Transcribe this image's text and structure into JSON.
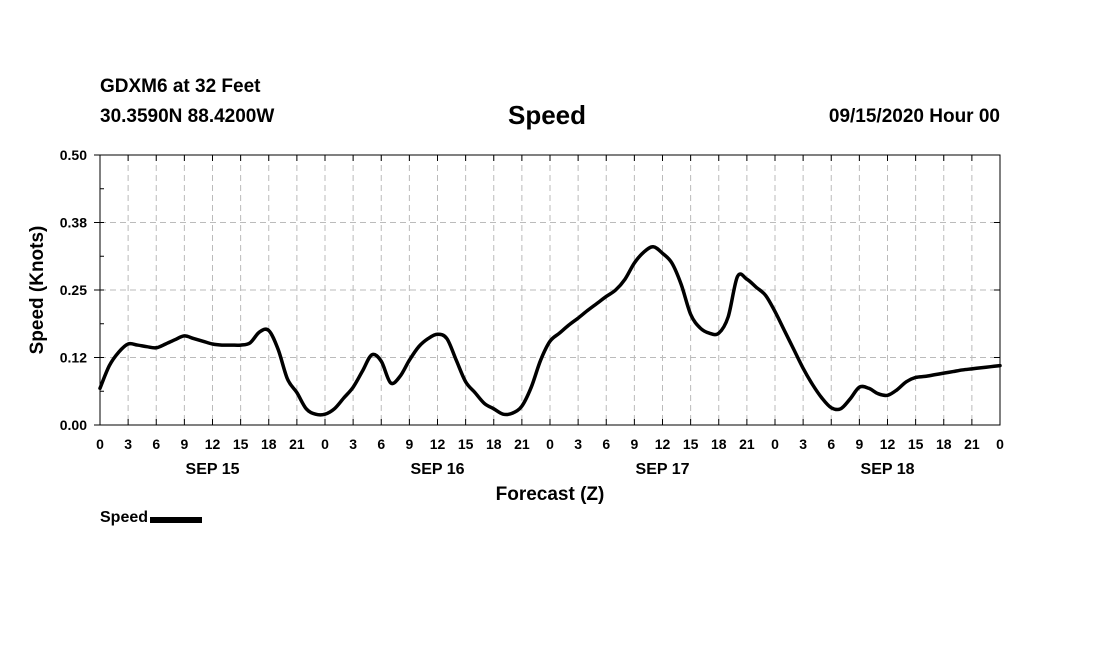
{
  "header": {
    "station": "GDXM6 at 32 Feet",
    "location": "30.3590N 88.4200W",
    "title": "Speed",
    "datestamp": "09/15/2020 Hour 00"
  },
  "chart_data": {
    "type": "line",
    "title": "Speed",
    "xlabel": "Forecast (Z)",
    "ylabel": "Speed (Knots)",
    "xlim": [
      0,
      96
    ],
    "ylim": [
      0,
      0.5
    ],
    "ytick_values": [
      0,
      0.125,
      0.25,
      0.375,
      0.5
    ],
    "ytick_labels": [
      "0.00",
      "0.12",
      "0.25",
      "0.38",
      "0.50"
    ],
    "xtick_labels": [
      "0",
      "3",
      "6",
      "9",
      "12",
      "15",
      "18",
      "21",
      "0",
      "3",
      "6",
      "9",
      "12",
      "15",
      "18",
      "21",
      "0",
      "3",
      "6",
      "9",
      "12",
      "15",
      "18",
      "21",
      "0",
      "3",
      "6",
      "9",
      "12",
      "15",
      "18",
      "21",
      "0"
    ],
    "day_labels": [
      {
        "label": "SEP 15",
        "hour": 12
      },
      {
        "label": "SEP 16",
        "hour": 36
      },
      {
        "label": "SEP 17",
        "hour": 60
      },
      {
        "label": "SEP 18",
        "hour": 84
      }
    ],
    "grid": true,
    "legend": {
      "position": "bottom-left",
      "label": "Speed"
    },
    "series": [
      {
        "name": "Speed",
        "color": "#000000",
        "x": [
          0,
          1,
          2,
          3,
          4,
          5,
          6,
          7,
          8,
          9,
          10,
          11,
          12,
          13,
          14,
          15,
          16,
          17,
          18,
          19,
          20,
          21,
          22,
          23,
          24,
          25,
          26,
          27,
          28,
          29,
          30,
          31,
          32,
          33,
          34,
          35,
          36,
          37,
          38,
          39,
          40,
          41,
          42,
          43,
          44,
          45,
          46,
          47,
          48,
          49,
          50,
          51,
          52,
          53,
          54,
          55,
          56,
          57,
          58,
          59,
          60,
          61,
          62,
          63,
          64,
          65,
          66,
          67,
          68,
          69,
          70,
          71,
          72,
          73,
          74,
          75,
          76,
          77,
          78,
          79,
          80,
          81,
          82,
          83,
          84,
          85,
          86,
          87,
          88,
          89,
          90,
          91,
          92,
          93,
          94,
          95,
          96
        ],
        "values": [
          0.068,
          0.11,
          0.135,
          0.15,
          0.148,
          0.145,
          0.143,
          0.15,
          0.158,
          0.165,
          0.16,
          0.155,
          0.15,
          0.148,
          0.148,
          0.148,
          0.152,
          0.172,
          0.175,
          0.14,
          0.085,
          0.06,
          0.03,
          0.02,
          0.02,
          0.03,
          0.05,
          0.07,
          0.1,
          0.13,
          0.118,
          0.078,
          0.09,
          0.12,
          0.145,
          0.16,
          0.168,
          0.16,
          0.12,
          0.08,
          0.06,
          0.04,
          0.03,
          0.02,
          0.022,
          0.035,
          0.07,
          0.12,
          0.155,
          0.17,
          0.185,
          0.198,
          0.212,
          0.225,
          0.238,
          0.25,
          0.27,
          0.3,
          0.32,
          0.33,
          0.318,
          0.3,
          0.26,
          0.205,
          0.18,
          0.17,
          0.17,
          0.2,
          0.275,
          0.27,
          0.255,
          0.24,
          0.21,
          0.175,
          0.14,
          0.105,
          0.075,
          0.05,
          0.032,
          0.03,
          0.048,
          0.07,
          0.068,
          0.058,
          0.055,
          0.065,
          0.08,
          0.088,
          0.09,
          0.093,
          0.096,
          0.099,
          0.102,
          0.104,
          0.106,
          0.108,
          0.11
        ]
      }
    ]
  }
}
